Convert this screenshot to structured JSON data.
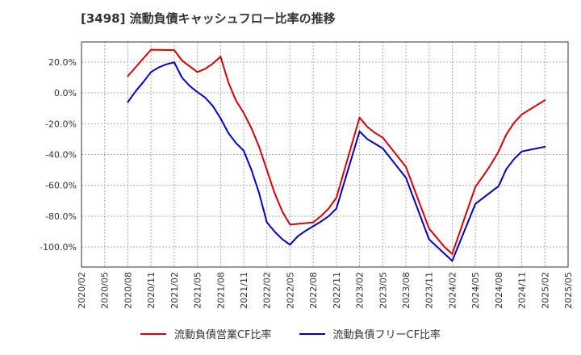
{
  "chart_data": {
    "type": "line",
    "title": "[3498]  流動負債キャッシュフロー比率の推移",
    "x_ticks": [
      "2020/02",
      "2020/05",
      "2020/08",
      "2020/11",
      "2021/02",
      "2021/05",
      "2021/08",
      "2021/11",
      "2022/02",
      "2022/05",
      "2022/08",
      "2022/11",
      "2023/02",
      "2023/05",
      "2023/08",
      "2023/11",
      "2024/02",
      "2024/05",
      "2024/08",
      "2024/11",
      "2025/02",
      "2025/05"
    ],
    "y_ticks": [
      "20.0%",
      "0.0%",
      "-20.0%",
      "-40.0%",
      "-60.0%",
      "-80.0%",
      "-100.0%"
    ],
    "y_tick_values": [
      20,
      0,
      -20,
      -40,
      -60,
      -80,
      -100
    ],
    "ylim": [
      -113,
      33
    ],
    "xlim": [
      "2020/02",
      "2025/05"
    ],
    "grid": true,
    "legend_position": "bottom",
    "series": [
      {
        "name": "流動負債営業CF比率",
        "color": "#dd0000",
        "points": [
          [
            "2020/08",
            10.8
          ],
          [
            "2020/11",
            28.0
          ],
          [
            "2021/02",
            27.7
          ],
          [
            "2021/03",
            21.0
          ],
          [
            "2021/05",
            13.5
          ],
          [
            "2021/06",
            15.5
          ],
          [
            "2021/07",
            19.0
          ],
          [
            "2021/08",
            23.5
          ],
          [
            "2021/09",
            7.0
          ],
          [
            "2021/10",
            -5.0
          ],
          [
            "2021/11",
            -13.0
          ],
          [
            "2021/12",
            -23.0
          ],
          [
            "2022/01",
            -35.0
          ],
          [
            "2022/02",
            -50.0
          ],
          [
            "2022/03",
            -65.0
          ],
          [
            "2022/04",
            -77.0
          ],
          [
            "2022/05",
            -85.5
          ],
          [
            "2022/08",
            -84.0
          ],
          [
            "2022/09",
            -80.0
          ],
          [
            "2022/10",
            -75.0
          ],
          [
            "2022/11",
            -68.0
          ],
          [
            "2023/02",
            -16.0
          ],
          [
            "2023/03",
            -22.0
          ],
          [
            "2023/04",
            -26.0
          ],
          [
            "2023/05",
            -29.0
          ],
          [
            "2023/08",
            -48.0
          ],
          [
            "2023/11",
            -88.0
          ],
          [
            "2024/01",
            -100.0
          ],
          [
            "2024/02",
            -104.5
          ],
          [
            "2024/05",
            -61.0
          ],
          [
            "2024/06",
            -54.0
          ],
          [
            "2024/07",
            -46.5
          ],
          [
            "2024/08",
            -38.0
          ],
          [
            "2024/09",
            -27.0
          ],
          [
            "2024/10",
            -19.5
          ],
          [
            "2024/11",
            -14.0
          ],
          [
            "2025/02",
            -4.8
          ]
        ]
      },
      {
        "name": "流動負債フリーCF比率",
        "color": "#0000cc",
        "points": [
          [
            "2020/08",
            -6.0
          ],
          [
            "2020/09",
            1.0
          ],
          [
            "2020/10",
            7.0
          ],
          [
            "2020/11",
            13.5
          ],
          [
            "2020/12",
            16.5
          ],
          [
            "2021/01",
            18.5
          ],
          [
            "2021/02",
            19.8
          ],
          [
            "2021/03",
            10.0
          ],
          [
            "2021/04",
            4.5
          ],
          [
            "2021/05",
            0.5
          ],
          [
            "2021/06",
            -3.0
          ],
          [
            "2021/07",
            -8.5
          ],
          [
            "2021/08",
            -16.5
          ],
          [
            "2021/09",
            -26.0
          ],
          [
            "2021/10",
            -32.5
          ],
          [
            "2021/11",
            -37.5
          ],
          [
            "2021/12",
            -50.0
          ],
          [
            "2022/01",
            -65.0
          ],
          [
            "2022/02",
            -84.0
          ],
          [
            "2022/03",
            -90.0
          ],
          [
            "2022/04",
            -95.0
          ],
          [
            "2022/05",
            -98.5
          ],
          [
            "2022/06",
            -93.0
          ],
          [
            "2022/07",
            -89.5
          ],
          [
            "2022/08",
            -86.5
          ],
          [
            "2022/09",
            -83.5
          ],
          [
            "2022/10",
            -80.0
          ],
          [
            "2022/11",
            -75.0
          ],
          [
            "2023/02",
            -25.0
          ],
          [
            "2023/03",
            -30.0
          ],
          [
            "2023/05",
            -36.0
          ],
          [
            "2023/08",
            -55.0
          ],
          [
            "2023/11",
            -95.0
          ],
          [
            "2024/02",
            -109.0
          ],
          [
            "2024/05",
            -72.0
          ],
          [
            "2024/08",
            -60.5
          ],
          [
            "2024/09",
            -49.5
          ],
          [
            "2024/10",
            -43.0
          ],
          [
            "2024/11",
            -38.0
          ],
          [
            "2025/02",
            -35.0
          ]
        ]
      }
    ]
  }
}
